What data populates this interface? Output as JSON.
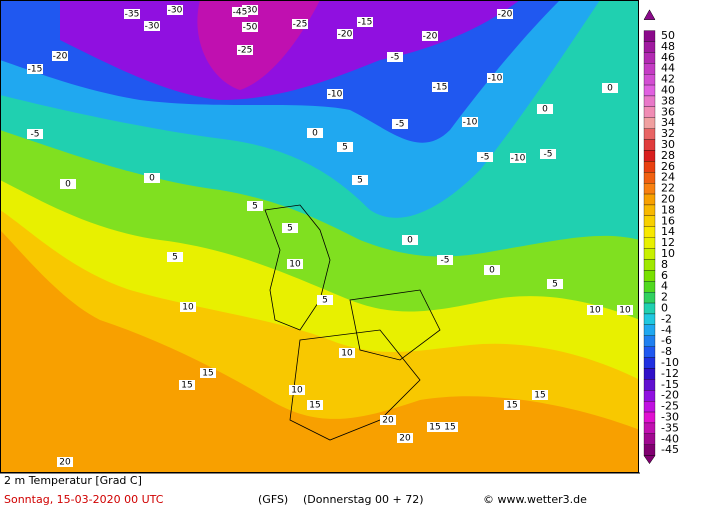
{
  "legend": {
    "levels": [
      50,
      48,
      46,
      44,
      42,
      40,
      38,
      36,
      34,
      32,
      30,
      28,
      26,
      24,
      22,
      20,
      18,
      16,
      14,
      12,
      10,
      8,
      6,
      4,
      2,
      0,
      -2,
      -4,
      -6,
      -8,
      -10,
      -12,
      -15,
      -20,
      -25,
      -30,
      -35,
      -40,
      -45
    ],
    "colors": [
      "#8a0a8a",
      "#a01aa0",
      "#b22ab2",
      "#c43cc4",
      "#d24ed2",
      "#e060e0",
      "#e878c8",
      "#f08cb4",
      "#f0a0a0",
      "#e86464",
      "#e03c3c",
      "#d81e1e",
      "#e84010",
      "#f06010",
      "#f88010",
      "#f8a000",
      "#f8b800",
      "#f8d000",
      "#f8e800",
      "#e8f000",
      "#c8f000",
      "#a0e800",
      "#78e000",
      "#50d820",
      "#30d060",
      "#20d0b0",
      "#20c8e0",
      "#20a8f0",
      "#2080f0",
      "#2058f0",
      "#2030e0",
      "#3010c8",
      "#6010d0",
      "#9010e0",
      "#c010e0",
      "#e010d0",
      "#c010b0",
      "#a00890",
      "#800070"
    ]
  },
  "map_labels": [
    -35,
    -30,
    -30,
    -45,
    -50,
    -25,
    -30,
    -20,
    -25,
    -15,
    -20,
    -15,
    -20,
    -20,
    -10,
    -15,
    -5,
    -10,
    -5,
    -10,
    -5,
    -5,
    -10,
    0,
    -5,
    0,
    0,
    0,
    5,
    5,
    5,
    0,
    5,
    5,
    -5,
    5,
    0,
    0,
    5,
    10,
    10,
    10,
    15,
    15,
    10,
    15,
    20,
    15,
    20,
    15,
    10,
    10,
    15,
    20,
    15
  ],
  "footer": {
    "variable": "2 m Temperatur [Grad C]",
    "date": "Sonntag, 15-03-2020  00 UTC",
    "model": "(GFS)",
    "forecast": "(Donnerstag 00 + 72)",
    "credit": "© www.wetter3.de"
  }
}
